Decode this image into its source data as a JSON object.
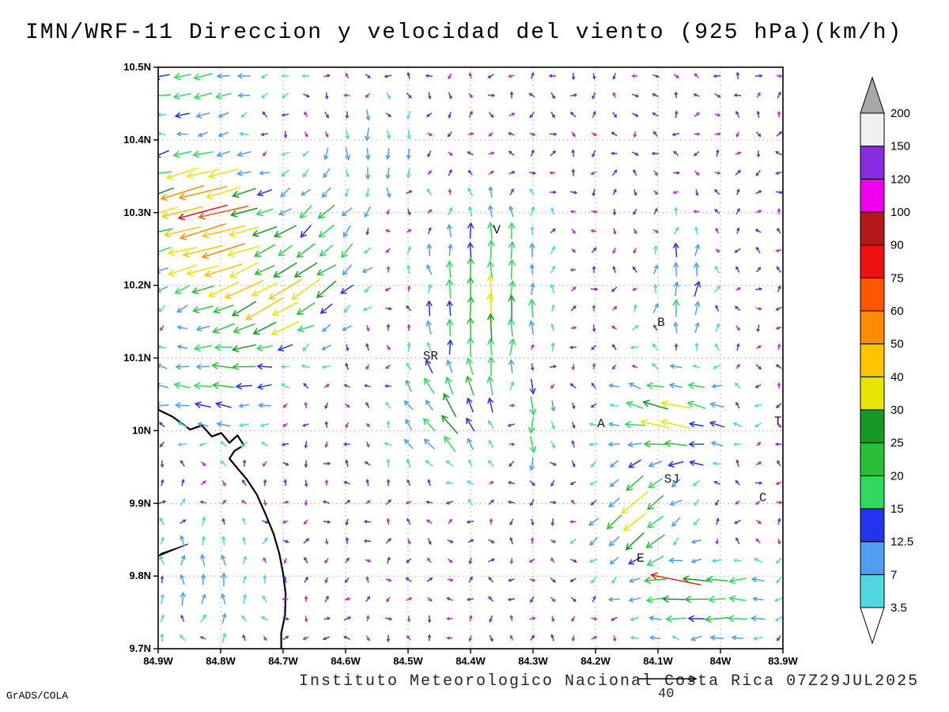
{
  "title": "IMN/WRF-11 Direccion y velocidad del viento (925 hPa)(km/h)",
  "footer": {
    "caption": "Instituto Meteorologico Nacional Costa Rica 07Z29JUL2025",
    "credit": "GrADS/COLA"
  },
  "chart_data": {
    "type": "vector-field",
    "title": "IMN/WRF-11 Direccion y velocidad del viento (925 hPa)(km/h)",
    "units": "km/h",
    "x_axis": {
      "ticks": [
        "84.9W",
        "84.8W",
        "84.7W",
        "84.6W",
        "84.5W",
        "84.4W",
        "84.3W",
        "84.2W",
        "84.1W",
        "84W",
        "83.9W"
      ],
      "range": [
        -84.9,
        -83.9
      ]
    },
    "y_axis": {
      "ticks": [
        "10.5N",
        "10.4N",
        "10.3N",
        "10.2N",
        "10.1N",
        "10N",
        "9.9N",
        "9.8N",
        "9.7N"
      ],
      "range": [
        9.7,
        10.5
      ]
    },
    "grid": {
      "dotted": true,
      "interval_deg": 0.1
    },
    "colorbar": {
      "units": "km/h",
      "levels": [
        3.5,
        7,
        12.5,
        15,
        20,
        25,
        30,
        40,
        50,
        60,
        75,
        90,
        100,
        120,
        150,
        200
      ],
      "colors": [
        "#50d8e0",
        "#4f9ff0",
        "#2333ee",
        "#2ed95e",
        "#2abf37",
        "#159824",
        "#e6e600",
        "#ffc400",
        "#ff8c00",
        "#ff5500",
        "#ee1111",
        "#b51818",
        "#ee00ee",
        "#8a2be2",
        "#f0f0f0"
      ],
      "below_color": "#ffffff",
      "above_color": "#a8a8a8"
    },
    "reference_vector": {
      "value": 40,
      "label": "40"
    },
    "city_labels": [
      {
        "label": "V",
        "u": 0.542,
        "v": 0.286
      },
      {
        "label": "B",
        "u": 0.805,
        "v": 0.445
      },
      {
        "label": "SR",
        "u": 0.436,
        "v": 0.503
      },
      {
        "label": "A",
        "u": 0.709,
        "v": 0.619
      },
      {
        "label": "SJ",
        "u": 0.822,
        "v": 0.714
      },
      {
        "label": "C",
        "u": 0.968,
        "v": 0.746
      },
      {
        "label": "E",
        "u": 0.772,
        "v": 0.85
      },
      {
        "label": "T",
        "u": 0.992,
        "v": 0.615
      }
    ],
    "coastline": [
      [
        0.0,
        0.589
      ],
      [
        0.023,
        0.601
      ],
      [
        0.051,
        0.623
      ],
      [
        0.07,
        0.616
      ],
      [
        0.086,
        0.635
      ],
      [
        0.101,
        0.629
      ],
      [
        0.114,
        0.646
      ],
      [
        0.127,
        0.633
      ],
      [
        0.137,
        0.65
      ],
      [
        0.122,
        0.66
      ],
      [
        0.114,
        0.673
      ],
      [
        0.127,
        0.69
      ],
      [
        0.142,
        0.709
      ],
      [
        0.158,
        0.735
      ],
      [
        0.172,
        0.769
      ],
      [
        0.185,
        0.803
      ],
      [
        0.194,
        0.837
      ],
      [
        0.2,
        0.871
      ],
      [
        0.204,
        0.905
      ],
      [
        0.203,
        0.943
      ],
      [
        0.197,
        0.973
      ],
      [
        0.197,
        1.0
      ]
    ],
    "coast_spit": [
      [
        0.0,
        0.841
      ],
      [
        0.048,
        0.82
      ],
      [
        0.005,
        0.836
      ]
    ],
    "vector_grid": {
      "cols": 31,
      "rows": 30
    },
    "background_speed": [
      1.2,
      3.4
    ],
    "speed_bins": [
      {
        "max": 2.1,
        "color": "#b832cc"
      },
      {
        "max": 3.5,
        "color": "#7a2fc0"
      },
      {
        "max": 7,
        "color": "#50d8e0"
      },
      {
        "max": 12.5,
        "color": "#4f9ff0"
      },
      {
        "max": 15,
        "color": "#2333ee"
      },
      {
        "max": 20,
        "color": "#2ed95e"
      },
      {
        "max": 25,
        "color": "#2abf37"
      },
      {
        "max": 30,
        "color": "#159824"
      },
      {
        "max": 40,
        "color": "#e6e600"
      },
      {
        "max": 50,
        "color": "#ffc400"
      },
      {
        "max": 60,
        "color": "#ff8c00"
      },
      {
        "max": 75,
        "color": "#ff5500"
      },
      {
        "max": 90,
        "color": "#ee1111"
      },
      {
        "max": 100,
        "color": "#b51818"
      },
      {
        "max": 120,
        "color": "#ee00ee"
      },
      {
        "max": 150,
        "color": "#8a2be2"
      },
      {
        "max": 200,
        "color": "#f0f0f0"
      },
      {
        "max": 9999,
        "color": "#a8a8a8"
      }
    ],
    "features": [
      {
        "u": 0.07,
        "v": 0.26,
        "ru": 0.085,
        "rv": 0.1,
        "dx": -0.95,
        "dy": 0.25,
        "peak": 60
      },
      {
        "u": 0.17,
        "v": 0.41,
        "ru": 0.09,
        "rv": 0.07,
        "dx": -0.85,
        "dy": 0.45,
        "peak": 40
      },
      {
        "u": 0.05,
        "v": 0.03,
        "ru": 0.1,
        "rv": 0.05,
        "dx": -0.95,
        "dy": 0.15,
        "peak": 22
      },
      {
        "u": 0.09,
        "v": 0.54,
        "ru": 0.11,
        "rv": 0.08,
        "dx": -0.98,
        "dy": -0.1,
        "peak": 18
      },
      {
        "u": 0.33,
        "v": 0.15,
        "ru": 0.08,
        "rv": 0.09,
        "dx": 0.05,
        "dy": 0.9,
        "peak": 10
      },
      {
        "u": 0.52,
        "v": 0.4,
        "ru": 0.09,
        "rv": 0.16,
        "dx": 0.0,
        "dy": -0.95,
        "peak": 26
      },
      {
        "u": 0.46,
        "v": 0.61,
        "ru": 0.07,
        "rv": 0.08,
        "dx": -0.55,
        "dy": -0.6,
        "peak": 20
      },
      {
        "u": 0.6,
        "v": 0.6,
        "ru": 0.03,
        "rv": 0.09,
        "dx": 0.05,
        "dy": 0.95,
        "peak": 22
      },
      {
        "u": 0.84,
        "v": 0.38,
        "ru": 0.05,
        "rv": 0.08,
        "dx": 0.1,
        "dy": -0.9,
        "peak": 17
      },
      {
        "u": 0.82,
        "v": 0.6,
        "ru": 0.08,
        "rv": 0.08,
        "dx": -0.9,
        "dy": -0.2,
        "peak": 27
      },
      {
        "u": 0.77,
        "v": 0.77,
        "ru": 0.06,
        "rv": 0.08,
        "dx": -0.65,
        "dy": 0.55,
        "peak": 30
      },
      {
        "u": 0.87,
        "v": 0.92,
        "ru": 0.1,
        "rv": 0.06,
        "dx": -0.95,
        "dy": 0.05,
        "peak": 28
      },
      {
        "u": 0.07,
        "v": 0.88,
        "ru": 0.09,
        "rv": 0.12,
        "dx": 0.02,
        "dy": -0.95,
        "peak": 9
      },
      {
        "u": 0.25,
        "v": 0.31,
        "ru": 0.07,
        "rv": 0.09,
        "dx": -0.6,
        "dy": 0.5,
        "peak": 24
      },
      {
        "u": 0.829,
        "v": 0.881,
        "ru": 0.02,
        "rv": 0.02,
        "dx": -0.9,
        "dy": -0.3,
        "peak": 60
      }
    ]
  }
}
